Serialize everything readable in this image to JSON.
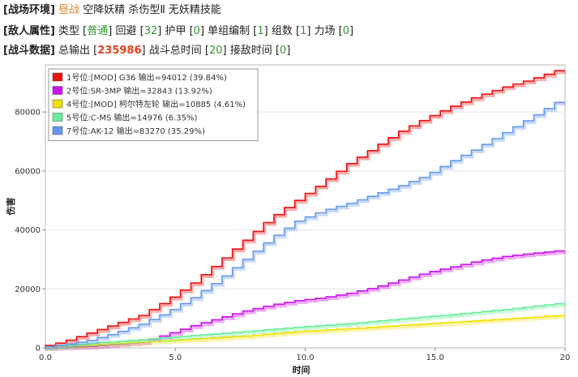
{
  "environment": {
    "tag": "[战场环境]",
    "mode": "昼战",
    "desc": "空降妖精 杀伤型Ⅱ 无妖精技能"
  },
  "enemy": {
    "tag": "[敌人属性]",
    "type_label": "类型 [",
    "type_value": "普通",
    "evasion_label": "] 回避 [",
    "evasion_value": "32",
    "armor_label": "] 护甲 [",
    "armor_value": "0",
    "unit_label": "] 单组编制 [",
    "unit_value": "1",
    "groups_label": "] 组数 [",
    "groups_value": "1",
    "forcefield_label": "] 力场 [",
    "forcefield_value": "0",
    "end": "]"
  },
  "battle": {
    "tag": "[战斗数据]",
    "total_label": "总输出 [",
    "total_value": "235986",
    "duration_label": "] 战斗总时间 [",
    "duration_value": "20",
    "engage_label": "] 接敌时间 [",
    "engage_value": "0",
    "end": "]"
  },
  "chart_data": {
    "type": "line",
    "xlabel": "时间",
    "ylabel": "伤害",
    "xlim": [
      0,
      20
    ],
    "ylim": [
      0,
      96000
    ],
    "x_ticks": [
      "0.0",
      "5.0",
      "10.0",
      "15.0",
      "20"
    ],
    "x_tick_values": [
      0,
      5,
      10,
      15,
      20
    ],
    "y_ticks": [
      "0",
      "20000",
      "40000",
      "60000",
      "80000"
    ],
    "y_tick_values": [
      0,
      20000,
      40000,
      60000,
      80000
    ],
    "grid": "horizontal",
    "legend_position": "top-left",
    "series": [
      {
        "name": "1号位:[MOD] G36  输出=94012 (39.84%)",
        "color": "#ee1111",
        "points": [
          [
            0,
            0
          ],
          [
            1,
            2000
          ],
          [
            2,
            5000
          ],
          [
            3,
            8000
          ],
          [
            4,
            11000
          ],
          [
            5,
            16000
          ],
          [
            6,
            22000
          ],
          [
            7,
            29000
          ],
          [
            8,
            36500
          ],
          [
            9,
            44000
          ],
          [
            10,
            50000
          ],
          [
            11,
            56000
          ],
          [
            12,
            62500
          ],
          [
            13,
            68000
          ],
          [
            14,
            73500
          ],
          [
            15,
            78000
          ],
          [
            16,
            82000
          ],
          [
            17,
            85500
          ],
          [
            18,
            88500
          ],
          [
            19,
            91000
          ],
          [
            20,
            94012
          ]
        ]
      },
      {
        "name": "2号位:SR-3MP  输出=32843 (13.92%)",
        "color": "#cc11ee",
        "points": [
          [
            0,
            0
          ],
          [
            2,
            500
          ],
          [
            4,
            2000
          ],
          [
            5,
            4500
          ],
          [
            6,
            7500
          ],
          [
            7,
            10000
          ],
          [
            8,
            12500
          ],
          [
            9,
            14500
          ],
          [
            10,
            16000
          ],
          [
            11,
            17000
          ],
          [
            12,
            18500
          ],
          [
            13,
            20500
          ],
          [
            14,
            23000
          ],
          [
            15,
            25500
          ],
          [
            16,
            27500
          ],
          [
            17,
            29500
          ],
          [
            18,
            31000
          ],
          [
            19,
            32000
          ],
          [
            20,
            32843
          ]
        ]
      },
      {
        "name": "4号位:[MOD] 柯尔特左轮  输出=10885 (4.61%)",
        "color": "#f0e000",
        "points": [
          [
            0,
            0
          ],
          [
            2,
            1000
          ],
          [
            4,
            2000
          ],
          [
            6,
            3000
          ],
          [
            8,
            4000
          ],
          [
            10,
            5500
          ],
          [
            12,
            6500
          ],
          [
            14,
            7600
          ],
          [
            16,
            8700
          ],
          [
            18,
            9800
          ],
          [
            20,
            10885
          ]
        ]
      },
      {
        "name": "5号位:C-MS  输出=14976 (6.35%)",
        "color": "#66ee99",
        "points": [
          [
            0,
            0
          ],
          [
            2,
            1500
          ],
          [
            4,
            2800
          ],
          [
            6,
            4200
          ],
          [
            8,
            5500
          ],
          [
            10,
            7000
          ],
          [
            12,
            8200
          ],
          [
            14,
            9800
          ],
          [
            16,
            11300
          ],
          [
            18,
            13000
          ],
          [
            20,
            14976
          ]
        ]
      },
      {
        "name": "7号位:AK-12  输出=83270 (35.29%)",
        "color": "#6699ee",
        "points": [
          [
            0,
            0
          ],
          [
            1,
            1000
          ],
          [
            2,
            2500
          ],
          [
            3,
            5000
          ],
          [
            4,
            8000
          ],
          [
            5,
            12000
          ],
          [
            6,
            17000
          ],
          [
            7,
            23000
          ],
          [
            8,
            30000
          ],
          [
            9,
            37000
          ],
          [
            10,
            43000
          ],
          [
            11,
            46500
          ],
          [
            12,
            49000
          ],
          [
            13,
            52000
          ],
          [
            14,
            55000
          ],
          [
            15,
            58500
          ],
          [
            16,
            63500
          ],
          [
            17,
            68000
          ],
          [
            18,
            73000
          ],
          [
            19,
            78000
          ],
          [
            20,
            83270
          ]
        ]
      }
    ]
  }
}
